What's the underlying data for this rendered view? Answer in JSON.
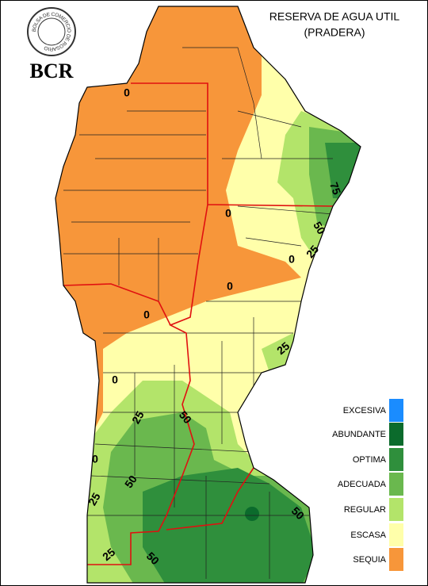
{
  "logo": {
    "ring_text": "BOLSA DE COMERCIO DE ROSARIO",
    "abbr": "BCR"
  },
  "title": "RESERVA DE AGUA UTIL",
  "subtitle": "(PRADERA)",
  "legend": [
    {
      "label": "EXCESIVA",
      "color": "#1a8cff"
    },
    {
      "label": "ABUNDANTE",
      "color": "#0b6b2c"
    },
    {
      "label": "OPTIMA",
      "color": "#2f8f3c"
    },
    {
      "label": "ADECUADA",
      "color": "#6ab84e"
    },
    {
      "label": "REGULAR",
      "color": "#b3e46a"
    },
    {
      "label": "ESCASA",
      "color": "#ffffaa"
    },
    {
      "label": "SEQUIA",
      "color": "#f7963a"
    }
  ],
  "contour_labels": [
    0,
    0,
    75,
    50,
    25,
    0,
    0,
    0,
    25,
    0,
    50,
    25,
    0,
    50,
    25,
    50,
    25,
    50
  ]
}
